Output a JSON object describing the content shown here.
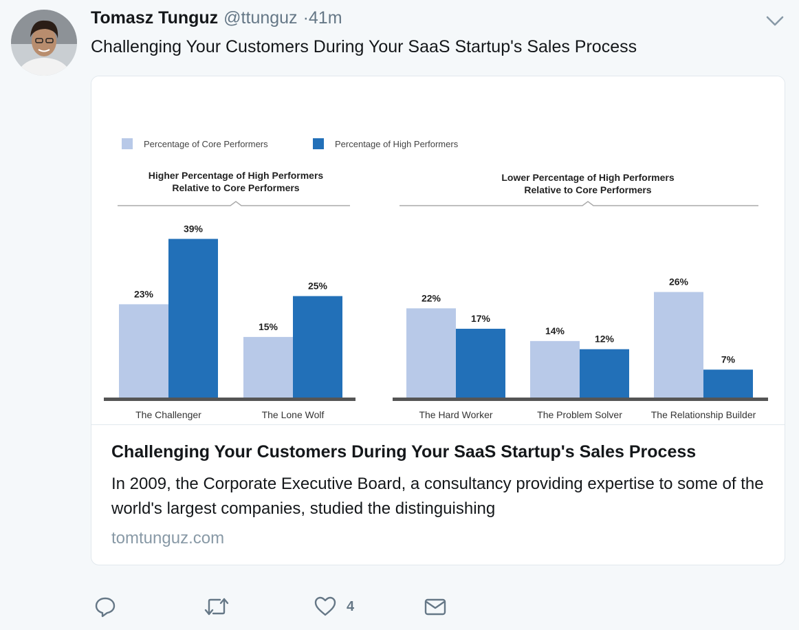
{
  "tweet": {
    "author_name": "Tomasz Tunguz",
    "handle": "@ttunguz",
    "time": "·41m",
    "text": "Challenging Your Customers During Your SaaS Startup's Sales Process"
  },
  "card": {
    "title": "Challenging Your Customers During Your SaaS Startup's Sales Process",
    "description": "In 2009, the Corporate Executive Board, a consultancy providing expertise to some of the world's largest companies, studied the distinguishing",
    "domain": "tomtunguz.com"
  },
  "actions": {
    "reply_icon": "reply-icon",
    "retweet_icon": "retweet-icon",
    "like_icon": "heart-icon",
    "like_count": "4",
    "dm_icon": "envelope-icon"
  },
  "chart_data": [
    {
      "type": "bar",
      "title": "Higher Percentage of High Performers Relative to Core Performers",
      "title_lines": [
        "Higher Percentage of High Performers",
        "Relative to Core Performers"
      ],
      "categories": [
        "The Challenger",
        "The Lone Wolf"
      ],
      "series": [
        {
          "name": "Percentage of Core Performers",
          "values": [
            23,
            15
          ],
          "labels": [
            "23%",
            "15%"
          ],
          "color": "#b8c9e8"
        },
        {
          "name": "Percentage of High Performers",
          "values": [
            39,
            25
          ],
          "labels": [
            "39%",
            "25%"
          ],
          "color": "#2270b8"
        }
      ],
      "legend": "top-left"
    },
    {
      "type": "bar",
      "title": "Lower Percentage of High Performers Relative to Core Performers",
      "title_lines": [
        "Lower Percentage of High Performers",
        "Relative to Core Performers"
      ],
      "categories": [
        "The Hard Worker",
        "The Problem Solver",
        "The Relationship Builder"
      ],
      "series": [
        {
          "name": "Percentage of Core Performers",
          "values": [
            22,
            14,
            26
          ],
          "labels": [
            "22%",
            "14%",
            "26%"
          ],
          "color": "#b8c9e8"
        },
        {
          "name": "Percentage of High Performers",
          "values": [
            17,
            12,
            7
          ],
          "labels": [
            "17%",
            "12%",
            "7%"
          ],
          "color": "#2270b8"
        }
      ],
      "legend": "top-left"
    }
  ]
}
